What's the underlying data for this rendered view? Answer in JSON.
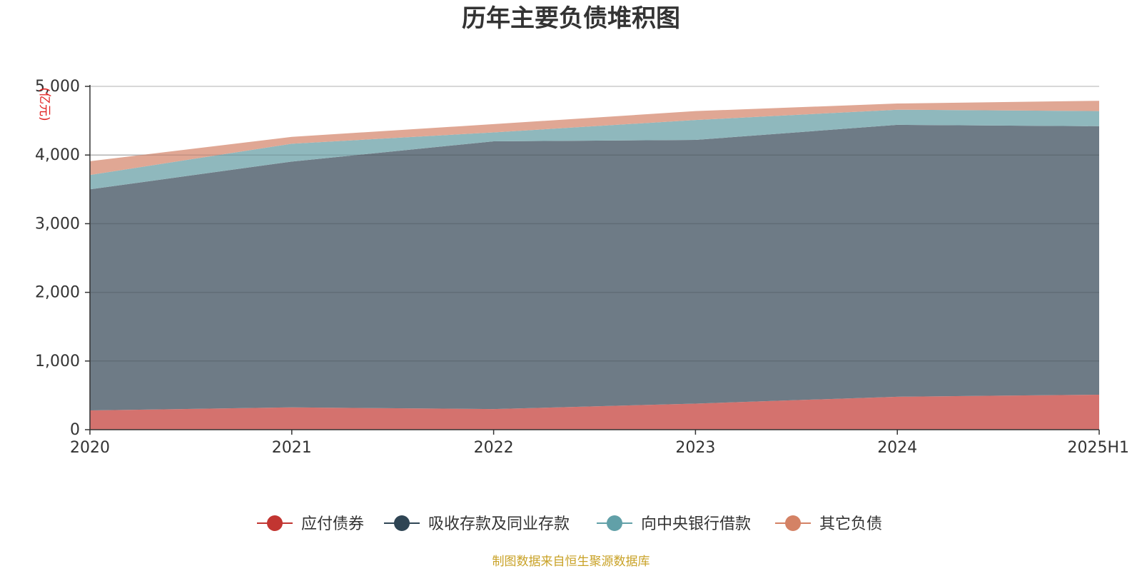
{
  "chart_data": {
    "type": "area",
    "stacked": true,
    "title": "历年主要负债堆积图",
    "unit_label": "(亿元)",
    "categories": [
      "2020",
      "2021",
      "2022",
      "2023",
      "2024",
      "2025H1"
    ],
    "series": [
      {
        "name": "应付债券",
        "color": "#c23531",
        "fill": "#d4726e",
        "values": [
          280,
          325,
          300,
          380,
          480,
          510
        ]
      },
      {
        "name": "吸收存款及同业存款",
        "color": "#2f4554",
        "fill": "#6e7b86",
        "values": [
          3220,
          3580,
          3900,
          3840,
          3960,
          3910
        ]
      },
      {
        "name": "向中央银行借款",
        "color": "#61a0a8",
        "fill": "#8fb8bd",
        "values": [
          210,
          260,
          130,
          290,
          220,
          220
        ]
      },
      {
        "name": "其它负债",
        "color": "#d48265",
        "fill": "#e0a794",
        "values": [
          200,
          100,
          120,
          130,
          90,
          150
        ]
      }
    ],
    "yticks": [
      "0",
      "1,000",
      "2,000",
      "3,000",
      "4,000",
      "5,000"
    ],
    "ylim": [
      0,
      5000
    ],
    "grid": true,
    "legend_position": "bottom-center",
    "source": "制图数据来自恒生聚源数据库"
  }
}
